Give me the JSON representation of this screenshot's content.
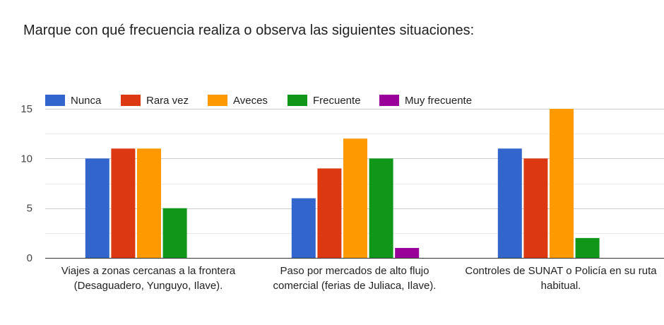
{
  "chart_data": {
    "type": "bar",
    "title": "Marque con qué frecuencia realiza o observa las siguientes situaciones:",
    "categories": [
      [
        "Viajes a zonas cercanas a la frontera",
        "(Desaguadero, Yunguyo, Ilave)."
      ],
      [
        "Paso por mercados de alto flujo",
        "comercial (ferias de Juliaca, Ilave)."
      ],
      [
        "Controles de SUNAT o Policía en su ruta",
        "habitual."
      ]
    ],
    "series": [
      {
        "name": "Nunca",
        "color": "#3366cc",
        "values": [
          10,
          6,
          11
        ]
      },
      {
        "name": "Rara vez",
        "color": "#dc3912",
        "values": [
          11,
          9,
          10
        ]
      },
      {
        "name": "Aveces",
        "color": "#ff9900",
        "values": [
          11,
          12,
          15
        ]
      },
      {
        "name": "Frecuente",
        "color": "#109618",
        "values": [
          5,
          10,
          2
        ]
      },
      {
        "name": "Muy frecuente",
        "color": "#990099",
        "values": [
          0,
          1,
          0
        ]
      }
    ],
    "yticks": [
      0,
      5,
      10,
      15
    ],
    "ylim": [
      0,
      15
    ],
    "legend_position": "top-left",
    "grid": true
  }
}
